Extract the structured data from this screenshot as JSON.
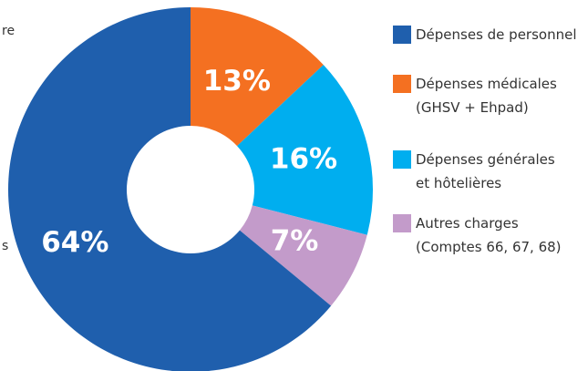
{
  "chart_data": {
    "type": "pie",
    "categories": [
      "Dépenses médicales\n(GHSV + Ehpad)",
      "Dépenses générales\net hôtelières",
      "Autres charges\n(Comptes 66, 67, 68)",
      "Dépenses de personnel"
    ],
    "values": [
      13,
      16,
      7,
      64
    ],
    "value_labels": [
      "13%",
      "16%",
      "7%",
      "64%"
    ],
    "colors": [
      "#f47021",
      "#00aeef",
      "#c39bca",
      "#1f5fad"
    ],
    "legend_order": [
      3,
      0,
      1,
      2
    ],
    "annotations": [
      "re",
      "s"
    ]
  }
}
